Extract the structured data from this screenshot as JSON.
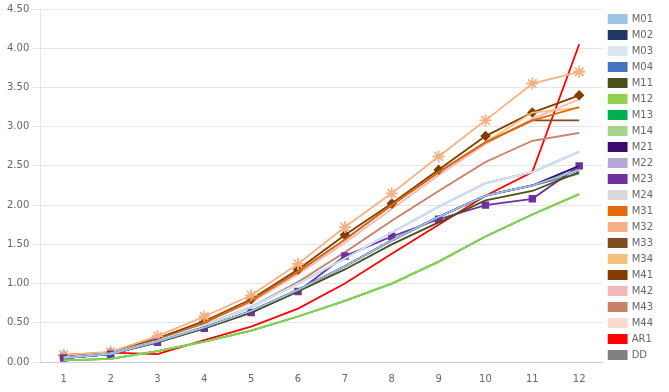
{
  "chart_data": {
    "type": "line",
    "x": [
      1,
      2,
      3,
      4,
      5,
      6,
      7,
      8,
      9,
      10,
      11,
      12
    ],
    "series": [
      {
        "name": "M01",
        "color": "#9dc3e6",
        "values": [
          0.05,
          0.1,
          0.26,
          0.44,
          0.65,
          0.92,
          1.22,
          1.55,
          1.85,
          2.12,
          2.25,
          2.45
        ]
      },
      {
        "name": "M02",
        "color": "#1f3864",
        "values": [
          0.05,
          0.1,
          0.26,
          0.44,
          0.65,
          0.92,
          1.22,
          1.55,
          1.85,
          2.12,
          2.25,
          2.45
        ]
      },
      {
        "name": "M03",
        "color": "#dce6f1",
        "values": [
          0.06,
          0.11,
          0.27,
          0.47,
          0.7,
          1.0,
          1.32,
          1.65,
          1.98,
          2.28,
          2.42,
          2.68
        ]
      },
      {
        "name": "M04",
        "color": "#4472c4",
        "values": [
          0.06,
          0.11,
          0.27,
          0.47,
          0.7,
          1.0,
          1.32,
          1.65,
          1.98,
          2.28,
          2.42,
          2.68
        ]
      },
      {
        "name": "M11",
        "color": "#4d5016",
        "values": [
          0.05,
          0.1,
          0.25,
          0.43,
          0.63,
          0.9,
          1.18,
          1.5,
          1.78,
          2.06,
          2.18,
          2.42
        ]
      },
      {
        "name": "M12",
        "color": "#92d050",
        "values": [
          0.02,
          0.04,
          0.14,
          0.26,
          0.4,
          0.58,
          0.78,
          1.0,
          1.28,
          1.6,
          1.88,
          2.14
        ]
      },
      {
        "name": "M13",
        "color": "#00b050",
        "values": [
          0.02,
          0.04,
          0.14,
          0.26,
          0.4,
          0.58,
          0.78,
          1.0,
          1.28,
          1.6,
          1.88,
          2.14
        ]
      },
      {
        "name": "M14",
        "color": "#a9d18e",
        "values": [
          0.02,
          0.04,
          0.14,
          0.26,
          0.4,
          0.58,
          0.78,
          1.0,
          1.28,
          1.6,
          1.88,
          2.14
        ]
      },
      {
        "name": "M21",
        "color": "#3a0a6e",
        "values": [
          0.05,
          0.1,
          0.26,
          0.44,
          0.65,
          0.92,
          1.22,
          1.55,
          1.85,
          2.12,
          2.25,
          2.5
        ]
      },
      {
        "name": "M22",
        "color": "#b4a7d6",
        "values": [
          0.05,
          0.1,
          0.26,
          0.44,
          0.65,
          0.92,
          1.22,
          1.55,
          1.85,
          2.12,
          2.25,
          2.5
        ]
      },
      {
        "name": "M23",
        "color": "#7030a0",
        "values": [
          0.05,
          0.1,
          0.25,
          0.43,
          0.63,
          0.9,
          1.35,
          1.6,
          1.82,
          2.0,
          2.08,
          2.5
        ],
        "marker": "square"
      },
      {
        "name": "M24",
        "color": "#d9d9d9",
        "values": [
          0.05,
          0.1,
          0.26,
          0.44,
          0.65,
          0.92,
          1.22,
          1.55,
          1.85,
          2.12,
          2.25,
          2.45
        ]
      },
      {
        "name": "M31",
        "color": "#e36c09",
        "values": [
          0.06,
          0.11,
          0.28,
          0.5,
          0.78,
          1.15,
          1.56,
          2.0,
          2.42,
          2.8,
          3.08,
          3.25
        ]
      },
      {
        "name": "M32",
        "color": "#f4b183",
        "values": [
          0.09,
          0.13,
          0.33,
          0.58,
          0.85,
          1.25,
          1.72,
          2.15,
          2.62,
          3.08,
          3.55,
          3.7
        ],
        "marker": "star"
      },
      {
        "name": "M33",
        "color": "#7f4b1e",
        "values": [
          0.06,
          0.11,
          0.28,
          0.5,
          0.78,
          1.15,
          1.56,
          2.0,
          2.42,
          2.8,
          3.08,
          3.08
        ]
      },
      {
        "name": "M34",
        "color": "#f4c179",
        "values": [
          0.06,
          0.11,
          0.28,
          0.5,
          0.78,
          1.15,
          1.56,
          2.0,
          2.42,
          2.8,
          3.18,
          3.24
        ]
      },
      {
        "name": "M41",
        "color": "#843c00",
        "values": [
          0.08,
          0.12,
          0.3,
          0.52,
          0.8,
          1.18,
          1.62,
          2.02,
          2.45,
          2.88,
          3.18,
          3.4
        ],
        "marker": "diamond"
      },
      {
        "name": "M42",
        "color": "#f4b8b8",
        "values": [
          0.06,
          0.11,
          0.28,
          0.5,
          0.76,
          1.12,
          1.52,
          1.95,
          2.38,
          2.78,
          3.1,
          3.35
        ]
      },
      {
        "name": "M43",
        "color": "#c8826a",
        "values": [
          0.06,
          0.11,
          0.27,
          0.47,
          0.7,
          1.02,
          1.4,
          1.8,
          2.18,
          2.55,
          2.82,
          2.92
        ]
      },
      {
        "name": "M44",
        "color": "#f9d9d0",
        "values": [
          0.06,
          0.11,
          0.27,
          0.47,
          0.7,
          1.02,
          1.4,
          1.8,
          2.18,
          2.55,
          2.82,
          2.92
        ]
      },
      {
        "name": "AR1",
        "color": "#ff0000",
        "values": [
          0.09,
          0.12,
          0.1,
          0.28,
          0.45,
          0.68,
          1.0,
          1.38,
          1.75,
          2.12,
          2.42,
          4.05
        ]
      },
      {
        "name": "DD",
        "color": "#808080",
        "values": [
          0.05,
          0.1,
          0.26,
          0.44,
          0.65,
          0.92,
          1.22,
          1.55,
          1.85,
          2.12,
          2.25,
          2.4
        ]
      }
    ],
    "xlim": [
      0.5,
      12.5
    ],
    "xticks": [
      1,
      2,
      3,
      4,
      5,
      6,
      7,
      8,
      9,
      10,
      11,
      12
    ],
    "ylim": [
      0.0,
      4.5
    ],
    "yticks": [
      {
        "value": 0.0,
        "label": "0.00"
      },
      {
        "value": 0.5,
        "label": "0.50"
      },
      {
        "value": 1.0,
        "label": "1.00"
      },
      {
        "value": 1.5,
        "label": "1.50"
      },
      {
        "value": 2.0,
        "label": "2.00"
      },
      {
        "value": 2.5,
        "label": "2.50"
      },
      {
        "value": 3.0,
        "label": "3.00"
      },
      {
        "value": 3.5,
        "label": "3.50"
      },
      {
        "value": 4.0,
        "label": "4.00"
      },
      {
        "value": 4.5,
        "label": "4.50"
      }
    ],
    "grid": "y",
    "legend": "right"
  }
}
